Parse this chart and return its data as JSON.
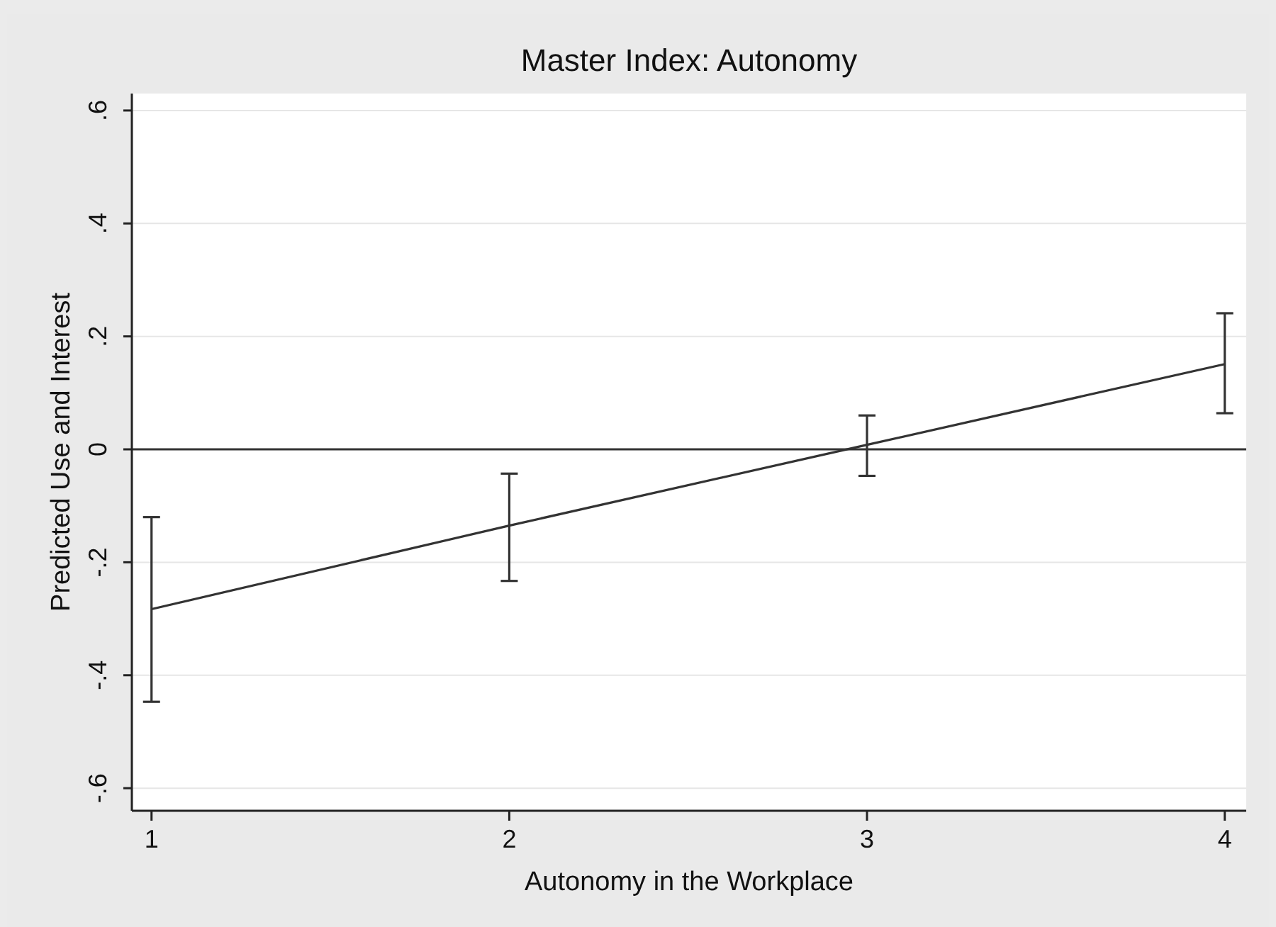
{
  "chart_data": {
    "type": "line",
    "title": "Master Index: Autonomy",
    "xlabel": "Autonomy in the Workplace",
    "ylabel": "Predicted Use and Interest",
    "x": [
      1,
      2,
      3,
      4
    ],
    "series": [
      {
        "color": "#333333",
        "values": [
          -0.283,
          -0.135,
          0.008,
          0.151
        ],
        "errors": [
          [
            -0.447,
            -0.12
          ],
          [
            -0.233,
            -0.043
          ],
          [
            -0.047,
            0.06
          ],
          [
            0.064,
            0.241
          ]
        ]
      }
    ],
    "xlim": [
      0.945,
      4.06
    ],
    "xticks": [
      1,
      2,
      3,
      4
    ],
    "ylim": [
      -0.64,
      0.63
    ],
    "yticks": [
      {
        "value": -0.6,
        "label": "-.6"
      },
      {
        "value": -0.4,
        "label": "-.4"
      },
      {
        "value": -0.2,
        "label": "-.2"
      },
      0,
      {
        "value": 0.2,
        "label": ".2"
      },
      {
        "value": 0.4,
        "label": ".4"
      },
      {
        "value": 0.6,
        "label": ".6"
      }
    ],
    "ref_lines": [
      {
        "axis": "y",
        "value": 0,
        "color": "#333333"
      }
    ],
    "grid": "y",
    "marker": "none",
    "line_style": "solid"
  }
}
